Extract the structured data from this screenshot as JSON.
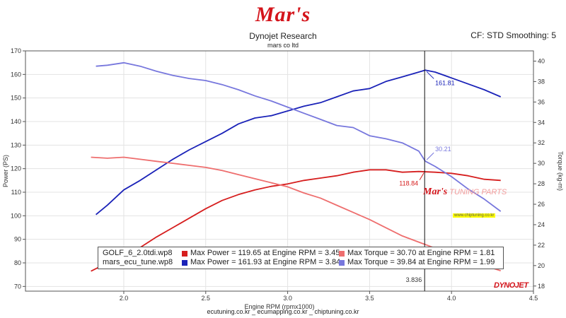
{
  "header": {
    "logo_text": "Mar's",
    "title": "Dynojet Research",
    "subtitle": "mars co ltd",
    "correction": "CF: STD Smoothing: 5"
  },
  "footer": "ecutuning.co.kr _ ecumapping.co.kr _ chiptuning.co.kr",
  "watermark": {
    "brand": "Mar's",
    "text": "TUNING PARTS",
    "site": "www.chiptuning.co.kr"
  },
  "dynojet_logo": "DYNOJET",
  "chart_data": {
    "type": "line",
    "xlabel": "Engine RPM (rpmx1000)",
    "ylabel_left": "Power (PS)",
    "ylabel_right": "Torque (kg-m)",
    "xlim": [
      1.4,
      4.5
    ],
    "ylim_left": [
      68,
      170
    ],
    "ylim_right": [
      17.5,
      41
    ],
    "x_ticks": [
      "2.0",
      "2.5",
      "3.0",
      "3.5",
      "4.0",
      "4.5"
    ],
    "y_ticks_left": [
      "70",
      "80",
      "90",
      "100",
      "110",
      "120",
      "130",
      "140",
      "150",
      "160",
      "170"
    ],
    "y_ticks_right": [
      "18",
      "20",
      "22",
      "24",
      "26",
      "28",
      "30",
      "32",
      "34",
      "36",
      "38",
      "40"
    ],
    "grid": true,
    "cursor": {
      "x": 3.836,
      "label": "3.836"
    },
    "annotations": [
      {
        "text": "161.81",
        "color": "#1a22b8"
      },
      {
        "text": "30.21",
        "color": "#7777dd"
      },
      {
        "text": "118.84",
        "color": "#d61e1e"
      }
    ],
    "series": [
      {
        "name": "GOLF_6_2.0tdi.wp8",
        "quantity": "power",
        "axis": "left",
        "color": "#d61e1e",
        "x": [
          1.8,
          1.9,
          2.0,
          2.1,
          2.2,
          2.3,
          2.4,
          2.5,
          2.6,
          2.7,
          2.8,
          2.9,
          3.0,
          3.1,
          3.2,
          3.3,
          3.4,
          3.5,
          3.6,
          3.7,
          3.8,
          3.9,
          4.0,
          4.1,
          4.2,
          4.3
        ],
        "values": [
          76.5,
          80,
          83,
          86.5,
          91,
          95,
          99,
          103,
          106.5,
          109,
          111,
          112.5,
          113.5,
          115,
          116,
          117,
          118.5,
          119.5,
          119.5,
          118.5,
          118.8,
          118.5,
          118,
          117,
          115.5,
          115
        ]
      },
      {
        "name": "mars_ecu_tune.wp8",
        "quantity": "power",
        "axis": "left",
        "color": "#1a22b8",
        "x": [
          1.83,
          1.9,
          2.0,
          2.1,
          2.2,
          2.3,
          2.4,
          2.5,
          2.6,
          2.7,
          2.8,
          2.9,
          3.0,
          3.1,
          3.2,
          3.3,
          3.4,
          3.5,
          3.6,
          3.7,
          3.8,
          3.84,
          3.9,
          4.0,
          4.1,
          4.2,
          4.3
        ],
        "values": [
          100.5,
          104.5,
          111,
          115,
          119.5,
          124,
          128,
          131.5,
          135,
          139,
          141.5,
          142.5,
          144.5,
          146.5,
          148,
          150.5,
          153,
          154,
          157,
          159,
          161,
          161.8,
          161,
          158.5,
          156,
          153.5,
          150.5
        ]
      },
      {
        "name": "GOLF_6_2.0tdi.wp8",
        "quantity": "torque",
        "axis": "right",
        "color": "#ee6e6e",
        "x": [
          1.8,
          1.9,
          2.0,
          2.1,
          2.2,
          2.3,
          2.4,
          2.5,
          2.6,
          2.7,
          2.8,
          2.9,
          3.0,
          3.1,
          3.2,
          3.3,
          3.4,
          3.5,
          3.6,
          3.7,
          3.8,
          3.9,
          4.0,
          4.1,
          4.2,
          4.3
        ],
        "values": [
          30.6,
          30.5,
          30.6,
          30.4,
          30.2,
          30.0,
          29.8,
          29.6,
          29.3,
          28.9,
          28.5,
          28.1,
          27.7,
          27.1,
          26.6,
          25.9,
          25.2,
          24.5,
          23.7,
          22.9,
          22.3,
          21.7,
          21.2,
          20.6,
          20.0,
          19.5
        ]
      },
      {
        "name": "mars_ecu_tune.wp8",
        "quantity": "torque",
        "axis": "right",
        "color": "#7777dd",
        "x": [
          1.83,
          1.9,
          2.0,
          2.1,
          2.2,
          2.3,
          2.4,
          2.5,
          2.6,
          2.7,
          2.8,
          2.9,
          3.0,
          3.1,
          3.2,
          3.3,
          3.4,
          3.5,
          3.6,
          3.7,
          3.8,
          3.84,
          3.9,
          4.0,
          4.1,
          4.2,
          4.3
        ],
        "values": [
          39.5,
          39.6,
          39.84,
          39.5,
          39.0,
          38.6,
          38.3,
          38.1,
          37.7,
          37.2,
          36.6,
          36.1,
          35.5,
          34.9,
          34.3,
          33.7,
          33.5,
          32.7,
          32.4,
          32.0,
          31.2,
          30.21,
          29.7,
          28.7,
          27.5,
          26.5,
          25.3
        ]
      }
    ]
  },
  "legend": {
    "rows": [
      {
        "file": "GOLF_6_2.0tdi.wp8",
        "power_text": "Max Power = 119.65 at Engine RPM = 3.45",
        "torque_text": "Max Torque = 30.70 at Engine RPM = 1.81",
        "power_color": "#d61e1e",
        "torque_color": "#ee6e6e"
      },
      {
        "file": "mars_ecu_tune.wp8",
        "power_text": "Max Power = 161.93 at Engine RPM = 3.84",
        "torque_text": "Max Torque = 39.84 at Engine RPM = 1.99",
        "power_color": "#1a22b8",
        "torque_color": "#7777dd"
      }
    ]
  }
}
